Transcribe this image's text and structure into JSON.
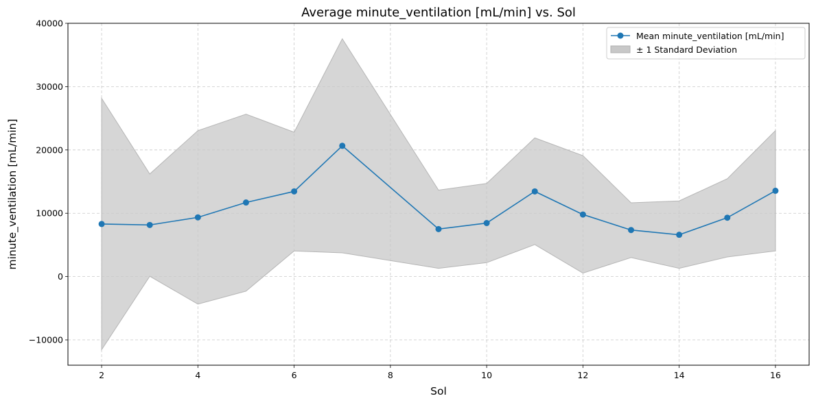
{
  "chart_data": {
    "type": "line",
    "title": "Average minute_ventilation [mL/min] vs. Sol",
    "xlabel": "Sol",
    "ylabel": "minute_ventilation [mL/min]",
    "xlim": [
      1.3,
      16.7
    ],
    "ylim": [
      -14000,
      40000
    ],
    "xticks": [
      2,
      4,
      6,
      8,
      10,
      12,
      14,
      16
    ],
    "xtick_labels": [
      "2",
      "4",
      "6",
      "8",
      "10",
      "12",
      "14",
      "16"
    ],
    "yticks": [
      -10000,
      0,
      10000,
      20000,
      30000,
      40000
    ],
    "ytick_labels": [
      "−10000",
      "0",
      "10000",
      "20000",
      "30000",
      "40000"
    ],
    "grid": true,
    "legend_position": "top-right",
    "x": [
      2,
      3,
      4,
      5,
      6,
      7,
      9,
      10,
      11,
      12,
      13,
      14,
      15,
      16
    ],
    "series": [
      {
        "name": "Mean minute_ventilation [mL/min]",
        "color": "#1f77b4",
        "values": [
          8300,
          8150,
          9350,
          11700,
          13450,
          20650,
          7500,
          8450,
          13450,
          9800,
          7350,
          6600,
          9300,
          13550
        ]
      }
    ],
    "band": {
      "name": "± 1 Standard Deviation",
      "color": "#c8c8c8",
      "upper": [
        28150,
        16200,
        23050,
        25650,
        22800,
        37550,
        13650,
        14700,
        21900,
        19100,
        11650,
        11950,
        15450,
        23050
      ],
      "lower": [
        -11550,
        50,
        -4350,
        -2300,
        4050,
        3750,
        1300,
        2200,
        5050,
        550,
        3000,
        1300,
        3100,
        4050
      ]
    }
  }
}
